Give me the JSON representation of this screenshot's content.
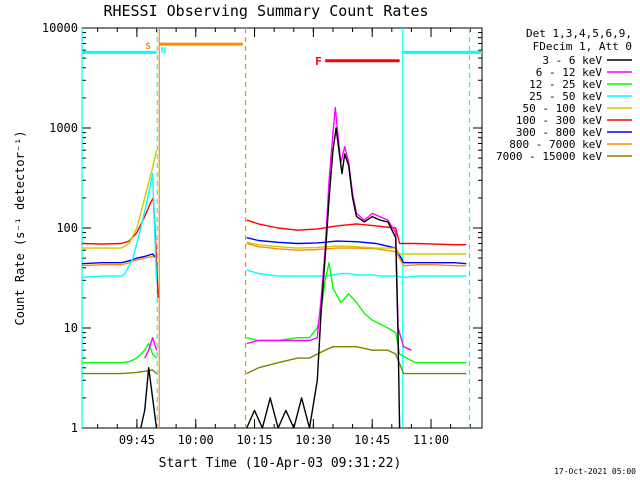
{
  "chart_data": {
    "type": "line",
    "title": "RHESSI Observing Summary Count Rates",
    "xlabel": "Start Time (10-Apr-03 09:31:22)",
    "ylabel": "Count Rate (s⁻¹ detector⁻¹)",
    "yscale": "log",
    "ylim": [
      1,
      10000
    ],
    "xlim_minutes": [
      0,
      102
    ],
    "x_tick_minutes": [
      14,
      29,
      44,
      59,
      74,
      89
    ],
    "x_tick_labels": [
      "09:45",
      "10:00",
      "10:15",
      "10:30",
      "10:45",
      "11:00"
    ],
    "y_tick_values": [
      1,
      10,
      100,
      1000,
      10000
    ],
    "y_tick_labels": [
      "1",
      "10",
      "100",
      "1000",
      "10000"
    ],
    "legend_header": [
      "Det 1,3,4,5,6,9,",
      "FDecim 1, Att 0"
    ],
    "legend_position": "outside-right",
    "footer_date": "17-Oct-2021 05:00",
    "data_gap_minutes": [
      20,
      42
    ],
    "annotations": [
      {
        "label": "S",
        "color": "#ff8c00",
        "minute": 18.2
      },
      {
        "label": "N",
        "color": "#00ffff",
        "minute": 19.8
      },
      {
        "label": "F",
        "color": "#ff0000",
        "minute": 62
      }
    ],
    "status_bars": [
      {
        "name": "night",
        "color": "#00ffff",
        "x0": 0,
        "x1": 19,
        "value": 5700
      },
      {
        "name": "saa",
        "color": "#ff8c00",
        "x0": 19.7,
        "x1": 41,
        "value": 6900
      },
      {
        "name": "flare",
        "color": "#ff0000",
        "x0": 62,
        "x1": 81,
        "value": 4700
      },
      {
        "name": "night",
        "color": "#00ffff",
        "x0": 82,
        "x1": 102,
        "value": 5700
      }
    ],
    "vertical_markers": [
      {
        "color": "#00ffff",
        "style": "solid",
        "minute": 0
      },
      {
        "color": "#00ffff",
        "style": "dashed",
        "minute": 19.2
      },
      {
        "color": "#ff8c00",
        "style": "solid",
        "minute": 19.7
      },
      {
        "color": "#ff8c00",
        "style": "dashed",
        "minute": 41.7
      },
      {
        "color": "#00ffff",
        "style": "solid",
        "minute": 81.8
      },
      {
        "color": "#00ffff",
        "style": "dashed",
        "minute": 98.8
      }
    ],
    "series": [
      {
        "name": "3 - 6 keV",
        "color": "#000000",
        "points": [
          [
            15,
            1
          ],
          [
            16,
            1.5
          ],
          [
            17,
            4
          ],
          [
            18,
            2
          ],
          [
            19,
            1
          ],
          [
            42,
            1
          ],
          [
            44,
            1.5
          ],
          [
            46,
            1
          ],
          [
            48,
            2
          ],
          [
            50,
            1
          ],
          [
            52,
            1.5
          ],
          [
            54,
            1
          ],
          [
            56,
            2
          ],
          [
            58,
            1
          ],
          [
            60,
            3
          ],
          [
            61,
            15
          ],
          [
            62,
            50
          ],
          [
            63,
            200
          ],
          [
            64,
            600
          ],
          [
            64.8,
            1000
          ],
          [
            65.5,
            600
          ],
          [
            66.3,
            350
          ],
          [
            67,
            550
          ],
          [
            68,
            420
          ],
          [
            69,
            200
          ],
          [
            70,
            130
          ],
          [
            72,
            115
          ],
          [
            74,
            130
          ],
          [
            76,
            120
          ],
          [
            78,
            115
          ],
          [
            80,
            80
          ],
          [
            80.6,
            8
          ],
          [
            81,
            1
          ]
        ]
      },
      {
        "name": "6 - 12 keV",
        "color": "#ff00ff",
        "points": [
          [
            16,
            5
          ],
          [
            17,
            6
          ],
          [
            18,
            8
          ],
          [
            19,
            6
          ],
          [
            42,
            7
          ],
          [
            45,
            7.5
          ],
          [
            50,
            7.5
          ],
          [
            55,
            7.5
          ],
          [
            58,
            7.5
          ],
          [
            60,
            8
          ],
          [
            61,
            20
          ],
          [
            62,
            60
          ],
          [
            63,
            300
          ],
          [
            64,
            900
          ],
          [
            64.6,
            1600
          ],
          [
            65.2,
            900
          ],
          [
            66,
            450
          ],
          [
            67,
            650
          ],
          [
            68,
            450
          ],
          [
            69,
            220
          ],
          [
            70,
            140
          ],
          [
            72,
            120
          ],
          [
            74,
            140
          ],
          [
            76,
            130
          ],
          [
            78,
            120
          ],
          [
            80,
            90
          ],
          [
            80.6,
            10
          ],
          [
            82,
            6.5
          ],
          [
            84,
            6
          ]
        ]
      },
      {
        "name": "12 - 25 keV",
        "color": "#00ff00",
        "points": [
          [
            0,
            4.5
          ],
          [
            5,
            4.5
          ],
          [
            10,
            4.5
          ],
          [
            12,
            4.6
          ],
          [
            14,
            5
          ],
          [
            16,
            6
          ],
          [
            17,
            7
          ],
          [
            18,
            5.5
          ],
          [
            19,
            5
          ],
          [
            42,
            8
          ],
          [
            45,
            7.5
          ],
          [
            50,
            7.5
          ],
          [
            55,
            8
          ],
          [
            58,
            8
          ],
          [
            60,
            10
          ],
          [
            61,
            15
          ],
          [
            62,
            30
          ],
          [
            63,
            45
          ],
          [
            64,
            25
          ],
          [
            66,
            18
          ],
          [
            68,
            22
          ],
          [
            70,
            18
          ],
          [
            72,
            14
          ],
          [
            74,
            12
          ],
          [
            76,
            11
          ],
          [
            78,
            10
          ],
          [
            80,
            9
          ],
          [
            81,
            5.5
          ],
          [
            85,
            4.5
          ],
          [
            90,
            4.5
          ],
          [
            95,
            4.5
          ],
          [
            98,
            4.5
          ]
        ]
      },
      {
        "name": "25 - 50 keV",
        "color": "#00ffff",
        "points": [
          [
            0,
            32
          ],
          [
            5,
            33
          ],
          [
            10,
            33
          ],
          [
            11,
            35
          ],
          [
            13,
            50
          ],
          [
            15,
            100
          ],
          [
            17,
            220
          ],
          [
            18,
            350
          ],
          [
            19,
            30
          ],
          [
            42,
            38
          ],
          [
            45,
            35
          ],
          [
            50,
            33
          ],
          [
            55,
            33
          ],
          [
            58,
            33
          ],
          [
            60,
            33
          ],
          [
            62,
            33
          ],
          [
            64,
            34
          ],
          [
            66,
            35
          ],
          [
            68,
            35
          ],
          [
            70,
            34
          ],
          [
            72,
            34
          ],
          [
            74,
            34
          ],
          [
            76,
            33
          ],
          [
            78,
            33
          ],
          [
            80,
            33
          ],
          [
            82,
            32
          ],
          [
            86,
            33
          ],
          [
            90,
            33
          ],
          [
            95,
            33
          ],
          [
            98,
            33
          ]
        ]
      },
      {
        "name": "50 - 100 keV",
        "color": "#cccc00",
        "points": [
          [
            0,
            63
          ],
          [
            5,
            63
          ],
          [
            10,
            63
          ],
          [
            12,
            70
          ],
          [
            14,
            100
          ],
          [
            16,
            200
          ],
          [
            18,
            400
          ],
          [
            19,
            600
          ],
          [
            42,
            72
          ],
          [
            45,
            68
          ],
          [
            50,
            65
          ],
          [
            55,
            63
          ],
          [
            60,
            64
          ],
          [
            65,
            66
          ],
          [
            70,
            65
          ],
          [
            75,
            63
          ],
          [
            80,
            63
          ],
          [
            81,
            55
          ],
          [
            85,
            55
          ],
          [
            90,
            55
          ],
          [
            95,
            55
          ],
          [
            98,
            55
          ]
        ]
      },
      {
        "name": "100 - 300 keV",
        "color": "#ff0000",
        "points": [
          [
            0,
            70
          ],
          [
            5,
            69
          ],
          [
            10,
            70
          ],
          [
            12,
            74
          ],
          [
            14,
            90
          ],
          [
            16,
            130
          ],
          [
            17.5,
            180
          ],
          [
            18.2,
            200
          ],
          [
            19,
            50
          ],
          [
            19.4,
            20
          ],
          [
            42,
            120
          ],
          [
            45,
            110
          ],
          [
            50,
            100
          ],
          [
            55,
            95
          ],
          [
            60,
            98
          ],
          [
            65,
            105
          ],
          [
            70,
            110
          ],
          [
            75,
            105
          ],
          [
            80,
            100
          ],
          [
            81,
            70
          ],
          [
            85,
            70
          ],
          [
            90,
            69
          ],
          [
            95,
            68
          ],
          [
            98,
            68
          ]
        ]
      },
      {
        "name": "300 - 800 keV",
        "color": "#0000ff",
        "points": [
          [
            0,
            44
          ],
          [
            5,
            45
          ],
          [
            10,
            45
          ],
          [
            12,
            47
          ],
          [
            14,
            50
          ],
          [
            16,
            52
          ],
          [
            18,
            55
          ],
          [
            19,
            50
          ],
          [
            42,
            80
          ],
          [
            45,
            75
          ],
          [
            50,
            72
          ],
          [
            55,
            70
          ],
          [
            60,
            71
          ],
          [
            65,
            74
          ],
          [
            70,
            73
          ],
          [
            75,
            70
          ],
          [
            80,
            63
          ],
          [
            82,
            45
          ],
          [
            86,
            45
          ],
          [
            90,
            45
          ],
          [
            95,
            45
          ],
          [
            98,
            44
          ]
        ]
      },
      {
        "name": "800 - 7000 keV",
        "color": "#ff8c00",
        "points": [
          [
            0,
            42
          ],
          [
            5,
            43
          ],
          [
            10,
            43
          ],
          [
            12,
            45
          ],
          [
            14,
            48
          ],
          [
            16,
            50
          ],
          [
            18,
            52
          ],
          [
            19,
            50
          ],
          [
            42,
            70
          ],
          [
            45,
            65
          ],
          [
            50,
            62
          ],
          [
            55,
            60
          ],
          [
            60,
            61
          ],
          [
            65,
            63
          ],
          [
            70,
            63
          ],
          [
            75,
            62
          ],
          [
            80,
            58
          ],
          [
            82,
            42
          ],
          [
            86,
            43
          ],
          [
            90,
            43
          ],
          [
            95,
            42
          ],
          [
            98,
            42
          ]
        ]
      },
      {
        "name": "7000 - 15000 keV",
        "color": "#808000",
        "points": [
          [
            0,
            3.5
          ],
          [
            5,
            3.5
          ],
          [
            10,
            3.5
          ],
          [
            14,
            3.6
          ],
          [
            16,
            3.7
          ],
          [
            18,
            3.8
          ],
          [
            19,
            3.5
          ],
          [
            42,
            3.5
          ],
          [
            45,
            4
          ],
          [
            50,
            4.5
          ],
          [
            55,
            5
          ],
          [
            58,
            5
          ],
          [
            60,
            5.5
          ],
          [
            62,
            6
          ],
          [
            64,
            6.5
          ],
          [
            66,
            6.5
          ],
          [
            70,
            6.5
          ],
          [
            74,
            6
          ],
          [
            78,
            6
          ],
          [
            80,
            5.5
          ],
          [
            82,
            3.5
          ],
          [
            86,
            3.5
          ],
          [
            90,
            3.5
          ],
          [
            95,
            3.5
          ],
          [
            98,
            3.5
          ]
        ]
      }
    ]
  }
}
